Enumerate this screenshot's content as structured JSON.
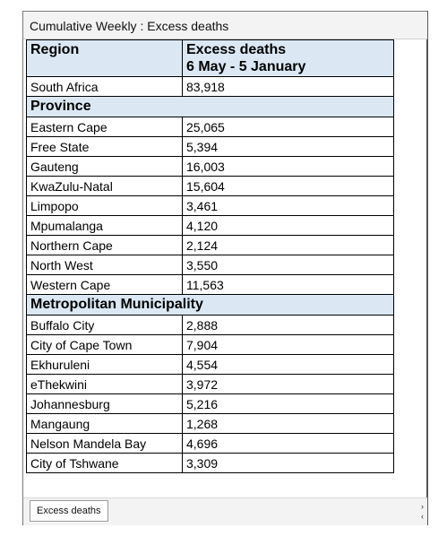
{
  "title": "Cumulative Weekly : Excess deaths",
  "table": {
    "col1_header": "Region",
    "col2_header_line1": "Excess deaths",
    "col2_header_line2": "6 May - 5 January",
    "national": {
      "name": "South Africa",
      "value": "83,918"
    },
    "province_label": "Province",
    "provinces": [
      {
        "name": "Eastern Cape",
        "value": "25,065"
      },
      {
        "name": "Free State",
        "value": "5,394"
      },
      {
        "name": "Gauteng",
        "value": "16,003"
      },
      {
        "name": "KwaZulu-Natal",
        "value": "15,604"
      },
      {
        "name": "Limpopo",
        "value": "3,461"
      },
      {
        "name": "Mpumalanga",
        "value": "4,120"
      },
      {
        "name": "Northern Cape",
        "value": "2,124"
      },
      {
        "name": "North West",
        "value": "3,550"
      },
      {
        "name": "Western Cape",
        "value": "11,563"
      }
    ],
    "metro_label": "Metropolitan Municipality",
    "metros": [
      {
        "name": "Buffalo City",
        "value": "2,888"
      },
      {
        "name": "City of Cape Town",
        "value": "7,904"
      },
      {
        "name": "Ekhuruleni",
        "value": "4,554"
      },
      {
        "name": "eThekwini",
        "value": "3,972"
      },
      {
        "name": "Johannesburg",
        "value": "5,216"
      },
      {
        "name": "Mangaung",
        "value": "1,268"
      },
      {
        "name": "Nelson Mandela Bay",
        "value": "4,696"
      },
      {
        "name": "City of Tshwane",
        "value": "3,309"
      }
    ]
  },
  "sheet_tab": "Excess deaths",
  "icons": {
    "scroll_right": "chevron-right-icon",
    "scroll_left": "chevron-left-icon"
  }
}
